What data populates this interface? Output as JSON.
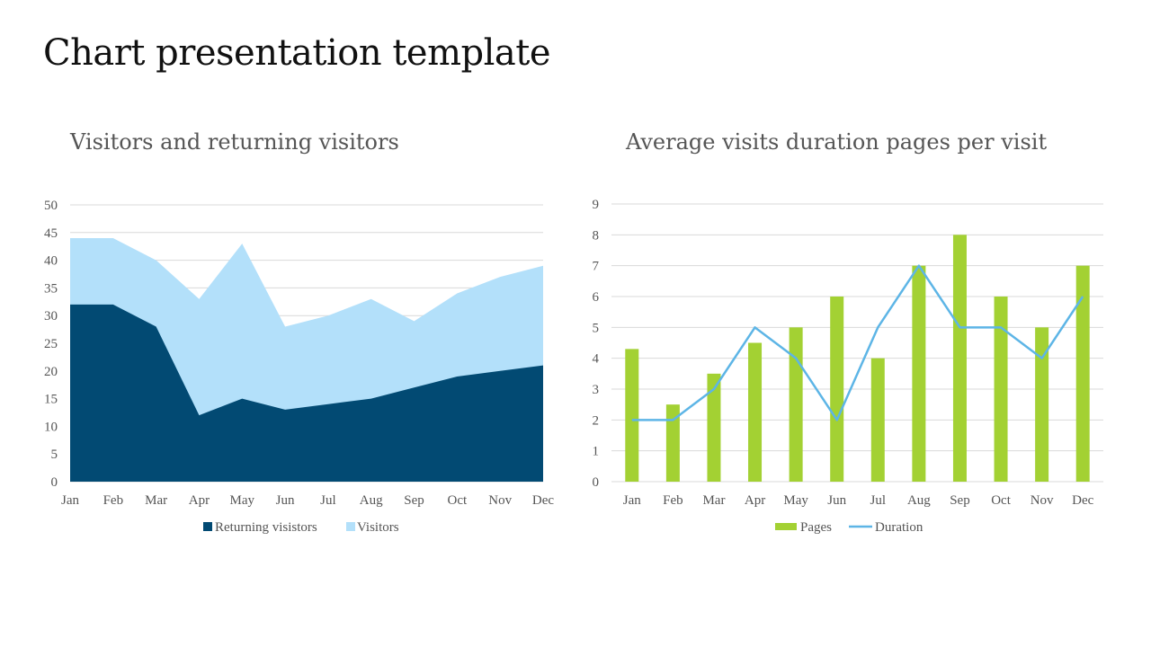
{
  "title": "Chart presentation template",
  "colors": {
    "returning": "#024a73",
    "visitors": "#b3e0fa",
    "pages": "#a3d133",
    "duration": "#5db5e6",
    "grid": "#d9d9d9"
  },
  "chart_data": [
    {
      "type": "area",
      "title": "Visitors and returning visitors",
      "categories": [
        "Jan",
        "Feb",
        "Mar",
        "Apr",
        "May",
        "Jun",
        "Jul",
        "Aug",
        "Sep",
        "Oct",
        "Nov",
        "Dec"
      ],
      "series": [
        {
          "name": "Returning visistors",
          "values": [
            32,
            32,
            28,
            12,
            15,
            13,
            14,
            15,
            17,
            19,
            20,
            21
          ]
        },
        {
          "name": "Visitors",
          "values": [
            44,
            44,
            40,
            33,
            43,
            28,
            30,
            33,
            29,
            34,
            37,
            39
          ]
        }
      ],
      "yticks": [
        "0",
        "5",
        "10",
        "15",
        "20",
        "25",
        "30",
        "35",
        "40",
        "45",
        "50"
      ],
      "ylim": [
        0,
        50
      ],
      "legend": [
        "Returning visistors",
        "Visitors"
      ],
      "legend_position": "bottom",
      "grid": true
    },
    {
      "type": "bar",
      "title": "Average visits duration pages per visit",
      "categories": [
        "Jan",
        "Feb",
        "Mar",
        "Apr",
        "May",
        "Jun",
        "Jul",
        "Aug",
        "Sep",
        "Oct",
        "Nov",
        "Dec"
      ],
      "series": [
        {
          "name": "Pages",
          "type": "bar",
          "values": [
            4.3,
            2.5,
            3.5,
            4.5,
            5,
            6,
            4,
            7,
            8,
            6,
            5,
            7
          ]
        },
        {
          "name": "Duration",
          "type": "line",
          "values": [
            2,
            2,
            3,
            5,
            4,
            2,
            5,
            7,
            5,
            5,
            4,
            6
          ]
        }
      ],
      "yticks": [
        "0",
        "1",
        "2",
        "3",
        "4",
        "5",
        "6",
        "7",
        "8",
        "9"
      ],
      "ylim": [
        0,
        9
      ],
      "legend": [
        "Pages",
        "Duration"
      ],
      "legend_position": "bottom",
      "grid": true
    }
  ]
}
